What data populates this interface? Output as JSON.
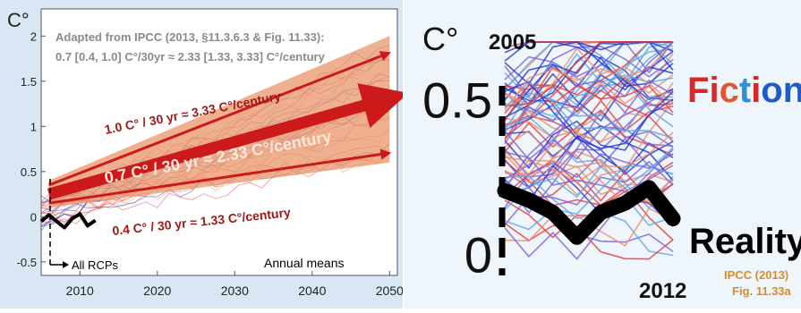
{
  "chart_data": [
    {
      "type": "line",
      "title": "Adapted from IPCC (2013, §11.3.6.3 & Fig. 11.33):",
      "subtitle": "0.7 [0.4, 1.0] C°/30yr ≈ 2.33 [1.33, 3.33] C°/century",
      "ylabel": "C°",
      "xlabel": "",
      "xlim": [
        2005,
        2051
      ],
      "ylim": [
        -0.65,
        2.3
      ],
      "x_ticks": [
        "2010",
        "2020",
        "2030",
        "2040",
        "2050"
      ],
      "y_ticks": [
        "-0.5",
        "0",
        "0.5",
        "1",
        "1.5",
        "2"
      ],
      "grid": false,
      "annotations": {
        "upper": "1.0 C° / 30 yr ≈ 3.33 C°/century",
        "middle": "0.7 C° / 30 yr ≈ 2.33 C°/century",
        "lower": "0.4 C° / 30 yr ≈ 1.33 C°/century",
        "rcps": "All RCPs",
        "means": "Annual means"
      },
      "trends": [
        {
          "label": "upper",
          "x": [
            2006,
            2050
          ],
          "y": [
            0.35,
            1.8
          ]
        },
        {
          "label": "middle",
          "x": [
            2006,
            2050
          ],
          "y": [
            0.25,
            1.3
          ]
        },
        {
          "label": "lower",
          "x": [
            2006,
            2050
          ],
          "y": [
            0.15,
            0.7
          ]
        }
      ],
      "envelope": {
        "x": [
          2006,
          2050
        ],
        "upper": [
          0.4,
          2.0
        ],
        "lower": [
          0.1,
          0.6
        ]
      },
      "observed": {
        "x": [
          2005,
          2006,
          2007,
          2008,
          2009,
          2010,
          2011,
          2012
        ],
        "y": [
          -0.05,
          0.02,
          -0.05,
          -0.12,
          -0.02,
          0.03,
          -0.1,
          -0.04
        ]
      },
      "colors": {
        "trend": "#cc1a1a",
        "envelope": "#e8956a",
        "observed": "#000000",
        "ensemble": [
          "#2233cc",
          "#e23b3b",
          "#f08a6a"
        ]
      }
    },
    {
      "type": "line",
      "ylabel": "C°",
      "xlim": [
        2005,
        2012
      ],
      "ylim": [
        -0.05,
        0.7
      ],
      "x_labels": [
        "2005",
        "2012"
      ],
      "y_ticks": [
        "0",
        "0.5"
      ],
      "legend": {
        "fiction": "Fiction",
        "reality": "Reality"
      },
      "source": [
        "IPCC (2013)",
        "Fig. 11.33a"
      ],
      "observed": {
        "x": [
          2005,
          2006,
          2007,
          2008,
          2009,
          2010,
          2011,
          2012
        ],
        "y": [
          0.2,
          0.17,
          0.13,
          0.05,
          0.13,
          0.16,
          0.21,
          0.11
        ]
      },
      "colors": {
        "fiction_letters": [
          "#d9262b",
          "#d9262b",
          "#e2572e",
          "#2f8fd8",
          "#d9262b",
          "#1f5bc4",
          "#1f5bc4"
        ],
        "reality": "#000000",
        "source": "#d98b2b",
        "ensemble": [
          "#2233cc",
          "#e23b3b",
          "#5aa5e8",
          "#f08a6a",
          "#7c5fd6"
        ]
      }
    }
  ]
}
